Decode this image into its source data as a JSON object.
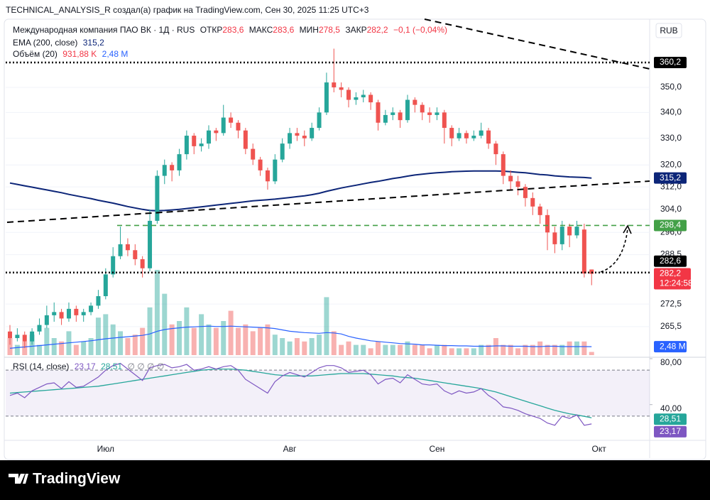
{
  "chart_data": {
    "type": "candlestick",
    "caption": "TECHNICAL_ANALYSIS_R создал(а) график на TradingView.com, Сен 30, 2025 11:25 UTC+3",
    "currency": "RUB",
    "brand": "TradingView",
    "legend": {
      "symbol": "Международная компания ПАО ВК · 1Д · RUS",
      "fields": [
        {
          "label": "ОТКР",
          "value": "283,6"
        },
        {
          "label": "МАКС",
          "value": "283,6"
        },
        {
          "label": "МИН",
          "value": "278,5"
        },
        {
          "label": "ЗАКР",
          "value": "282,2"
        }
      ],
      "change": "−0,1 (−0,04%)"
    },
    "categories": [
      null,
      null,
      null,
      null,
      null,
      null,
      null,
      null,
      null,
      null,
      null,
      null,
      null,
      "Июл",
      null,
      null,
      null,
      null,
      null,
      null,
      null,
      null,
      null,
      null,
      null,
      null,
      null,
      null,
      null,
      null,
      null,
      null,
      null,
      null,
      null,
      null,
      null,
      null,
      "Авг",
      null,
      null,
      null,
      null,
      null,
      null,
      null,
      null,
      null,
      null,
      null,
      null,
      null,
      null,
      null,
      null,
      null,
      null,
      null,
      "Сен",
      null,
      null,
      null,
      null,
      null,
      null,
      null,
      null,
      null,
      null,
      null,
      null,
      null,
      null,
      null,
      null,
      null,
      null,
      null,
      null,
      null,
      "Окт"
    ],
    "up_color": "#26a69a",
    "down_color": "#ef5350",
    "open": [
      264,
      262,
      263,
      261,
      264,
      266,
      269,
      270,
      268,
      271,
      269,
      270,
      272,
      275,
      282,
      288,
      292,
      290,
      287,
      284,
      300,
      316,
      320,
      318,
      324,
      331,
      327,
      328,
      333,
      332,
      338,
      336,
      333,
      326,
      322,
      318,
      314,
      322,
      328,
      332,
      331,
      330,
      334,
      340,
      352,
      350,
      349,
      345,
      346,
      347,
      344,
      336,
      339,
      340,
      337,
      345,
      343,
      340,
      339,
      340,
      334,
      330,
      332,
      330,
      331,
      333,
      328,
      324,
      316,
      314,
      312,
      308,
      305,
      302,
      296,
      292,
      298,
      295,
      297,
      283.6,
      null
    ],
    "high": [
      266,
      265,
      264,
      265,
      268,
      272,
      273,
      271,
      273,
      272,
      271,
      273,
      277,
      284,
      291,
      298,
      294,
      292,
      288,
      304,
      318,
      322,
      321,
      326,
      333,
      332,
      330,
      335,
      334,
      343,
      340,
      337,
      334,
      328,
      323,
      319,
      324,
      330,
      334,
      334,
      333,
      336,
      342,
      356,
      366,
      352,
      350,
      348,
      349,
      348,
      345,
      341,
      342,
      341,
      347,
      346,
      344,
      342,
      342,
      341,
      335,
      334,
      333,
      333,
      336,
      334,
      329,
      325,
      318,
      316,
      313,
      310,
      306,
      304,
      298,
      300,
      299,
      300,
      299,
      283.6,
      null
    ],
    "low": [
      260,
      261,
      259,
      260,
      263,
      265,
      267,
      266,
      267,
      267,
      267,
      269,
      271,
      274,
      281,
      287,
      288,
      285,
      281,
      283,
      299,
      313,
      314,
      316,
      322,
      324,
      325,
      326,
      329,
      331,
      334,
      330,
      324,
      320,
      316,
      311,
      313,
      321,
      326,
      329,
      327,
      329,
      333,
      339,
      348,
      346,
      342,
      343,
      344,
      341,
      333,
      335,
      337,
      334,
      336,
      340,
      337,
      336,
      337,
      328,
      327,
      329,
      328,
      329,
      330,
      326,
      320,
      313,
      311,
      309,
      305,
      302,
      299,
      290,
      289,
      290,
      291,
      294,
      281,
      278.5,
      null
    ],
    "close": [
      262,
      263,
      261,
      264,
      266,
      269,
      270,
      268,
      271,
      269,
      270,
      272,
      275,
      282,
      288,
      292,
      290,
      287,
      284,
      300,
      316,
      320,
      318,
      324,
      331,
      327,
      328,
      333,
      332,
      338,
      336,
      333,
      326,
      322,
      318,
      314,
      322,
      328,
      332,
      331,
      330,
      334,
      340,
      352,
      350,
      349,
      345,
      346,
      347,
      344,
      336,
      339,
      340,
      337,
      345,
      343,
      340,
      339,
      340,
      334,
      330,
      332,
      330,
      331,
      333,
      328,
      324,
      316,
      314,
      312,
      308,
      305,
      302,
      296,
      292,
      298,
      295,
      298,
      282.3,
      282.2,
      null
    ],
    "log_scale": true,
    "ylim": [
      256.9,
      379.3
    ],
    "yticks": [
      {
        "value": 350,
        "label": "350,0"
      },
      {
        "value": 340,
        "label": "340,0"
      },
      {
        "value": 330,
        "label": "330,0"
      },
      {
        "value": 320,
        "label": "320,0"
      },
      {
        "value": 312,
        "label": "312,0"
      },
      {
        "value": 304,
        "label": "304,0"
      },
      {
        "value": 296,
        "label": "296,0"
      },
      {
        "value": 288.5,
        "label": "288,5"
      },
      {
        "value": 272.5,
        "label": "272,5"
      },
      {
        "value": 265.5,
        "label": "265,5"
      }
    ],
    "grid": true,
    "last_price": {
      "value": 282.2,
      "label": "282,2",
      "countdown": "12:24:58",
      "color": "#f23645"
    },
    "levels": [
      {
        "value": 360.2,
        "label": "360,2",
        "color": "#000000",
        "style": "dotted"
      },
      {
        "value": 298.4,
        "label": "298,4",
        "color": "#43a047",
        "style": "dashed"
      },
      {
        "value": 282.6,
        "label": "282,6",
        "color": "#000000",
        "style": "dotted"
      }
    ],
    "ema": {
      "name": "EMA (200, close)",
      "color": "#0c2578",
      "last_label": "315,2",
      "values": [
        313.4,
        312.9,
        312.4,
        311.9,
        311.4,
        310.9,
        310.4,
        309.9,
        309.3,
        308.8,
        308.3,
        307.8,
        307.2,
        306.7,
        306.2,
        305.6,
        305,
        304.5,
        304,
        303.6,
        303.5,
        303.6,
        303.8,
        304,
        304.3,
        304.6,
        304.9,
        305.2,
        305.5,
        305.8,
        306.1,
        306.4,
        306.7,
        307,
        307.2,
        307.4,
        307.6,
        307.9,
        308.2,
        308.5,
        308.8,
        309.2,
        309.7,
        310.4,
        311,
        311.6,
        312.1,
        312.6,
        313.1,
        313.6,
        314,
        314.5,
        315,
        315.4,
        315.9,
        316.3,
        316.6,
        316.9,
        317.1,
        317.3,
        317.5,
        317.6,
        317.7,
        317.8,
        317.8,
        317.8,
        317.8,
        317.7,
        317.5,
        317.3,
        317.1,
        316.8,
        316.5,
        316.3,
        316,
        315.8,
        315.6,
        315.5,
        315.4,
        315.2,
        null
      ]
    },
    "volume": {
      "name": "Объём (20)",
      "last_label": "931,88 K",
      "ma_label": "2,48 M",
      "ma_color": "#2962ff",
      "values": [
        5,
        3,
        4,
        6,
        3,
        8,
        5,
        4,
        7,
        3,
        4,
        5,
        11,
        12,
        9,
        7,
        5,
        6,
        8,
        14,
        25,
        18,
        9,
        10,
        14,
        8,
        12,
        9,
        8,
        10,
        13,
        8,
        9,
        7,
        8,
        9,
        6,
        5,
        4,
        5,
        4,
        5,
        6,
        17,
        7,
        3,
        4,
        3,
        3,
        2,
        4,
        3,
        3,
        3,
        4,
        3,
        3,
        2,
        3,
        3,
        2,
        2,
        2,
        2,
        3,
        3,
        5,
        3,
        3,
        2,
        3,
        3,
        4,
        3,
        3,
        3,
        4,
        4,
        4,
        0.93188,
        null
      ],
      "ma": [
        2,
        2.2,
        2.4,
        2.6,
        2.8,
        3,
        3.2,
        3.4,
        3.6,
        3.8,
        4,
        4.2,
        4.5,
        4.8,
        5,
        5.2,
        5.4,
        5.6,
        5.8,
        6.2,
        7,
        7.5,
        7.8,
        8,
        8.2,
        8.3,
        8.4,
        8.5,
        8.4,
        8.4,
        8.5,
        8.4,
        8.3,
        8.2,
        8.1,
        8,
        7.8,
        7.4,
        7,
        6.8,
        6.6,
        6.5,
        6.4,
        6.6,
        6.5,
        6.2,
        5.5,
        5,
        4.6,
        4.2,
        4,
        3.8,
        3.6,
        3.4,
        3.3,
        3.2,
        3,
        3,
        2.9,
        2.8,
        2.8,
        2.7,
        2.7,
        2.6,
        2.6,
        2.6,
        2.7,
        2.7,
        2.6,
        2.6,
        2.6,
        2.5,
        2.5,
        2.6,
        2.6,
        2.5,
        2.5,
        2.5,
        2.5,
        2.48,
        null
      ]
    },
    "rsi": {
      "name": "RSI (14, close)",
      "color": "#7e57c2",
      "ma_color": "#26a69a",
      "last_label": "23,17",
      "ma_label": "28,51",
      "extra": "∅ ∅ ∅ ∅",
      "ylim": [
        12,
        80
      ],
      "yticks": [
        {
          "value": 80,
          "label": "80,00"
        },
        {
          "value": 40,
          "label": "40,00"
        }
      ],
      "levels": [
        70,
        30
      ],
      "values": [
        48,
        50,
        46,
        52,
        55,
        58,
        59,
        54,
        60,
        55,
        56,
        60,
        64,
        70,
        74,
        76,
        71,
        66,
        61,
        72,
        74,
        75,
        72,
        73,
        75,
        70,
        71,
        73,
        71,
        73,
        74,
        70,
        62,
        58,
        54,
        50,
        60,
        65,
        68,
        66,
        64,
        68,
        72,
        74,
        74,
        72,
        68,
        69,
        70,
        66,
        58,
        62,
        63,
        59,
        66,
        62,
        58,
        57,
        58,
        52,
        49,
        52,
        50,
        51,
        54,
        48,
        44,
        38,
        37,
        35,
        32,
        30,
        28,
        24,
        22,
        30,
        28,
        31,
        22,
        23.17,
        null
      ],
      "ma": [
        50,
        50.5,
        51,
        51.5,
        52,
        52.5,
        53,
        53.5,
        54,
        54.5,
        55,
        55.5,
        56,
        57,
        58,
        59,
        60,
        61,
        62,
        63,
        64,
        65,
        66,
        67,
        68,
        69,
        70,
        70.5,
        71,
        71,
        71,
        70.5,
        70,
        69,
        68,
        67,
        66,
        65.5,
        65,
        65,
        65,
        65,
        65.5,
        66,
        66.5,
        67,
        67,
        67,
        67,
        66.5,
        66,
        65.5,
        65,
        64,
        63.5,
        63,
        62,
        61,
        60,
        59,
        58,
        57,
        56,
        55,
        54,
        52.5,
        51,
        49,
        47,
        45,
        43,
        41,
        39,
        37,
        35,
        33.5,
        32,
        31,
        29.8,
        28.51,
        null
      ]
    }
  }
}
